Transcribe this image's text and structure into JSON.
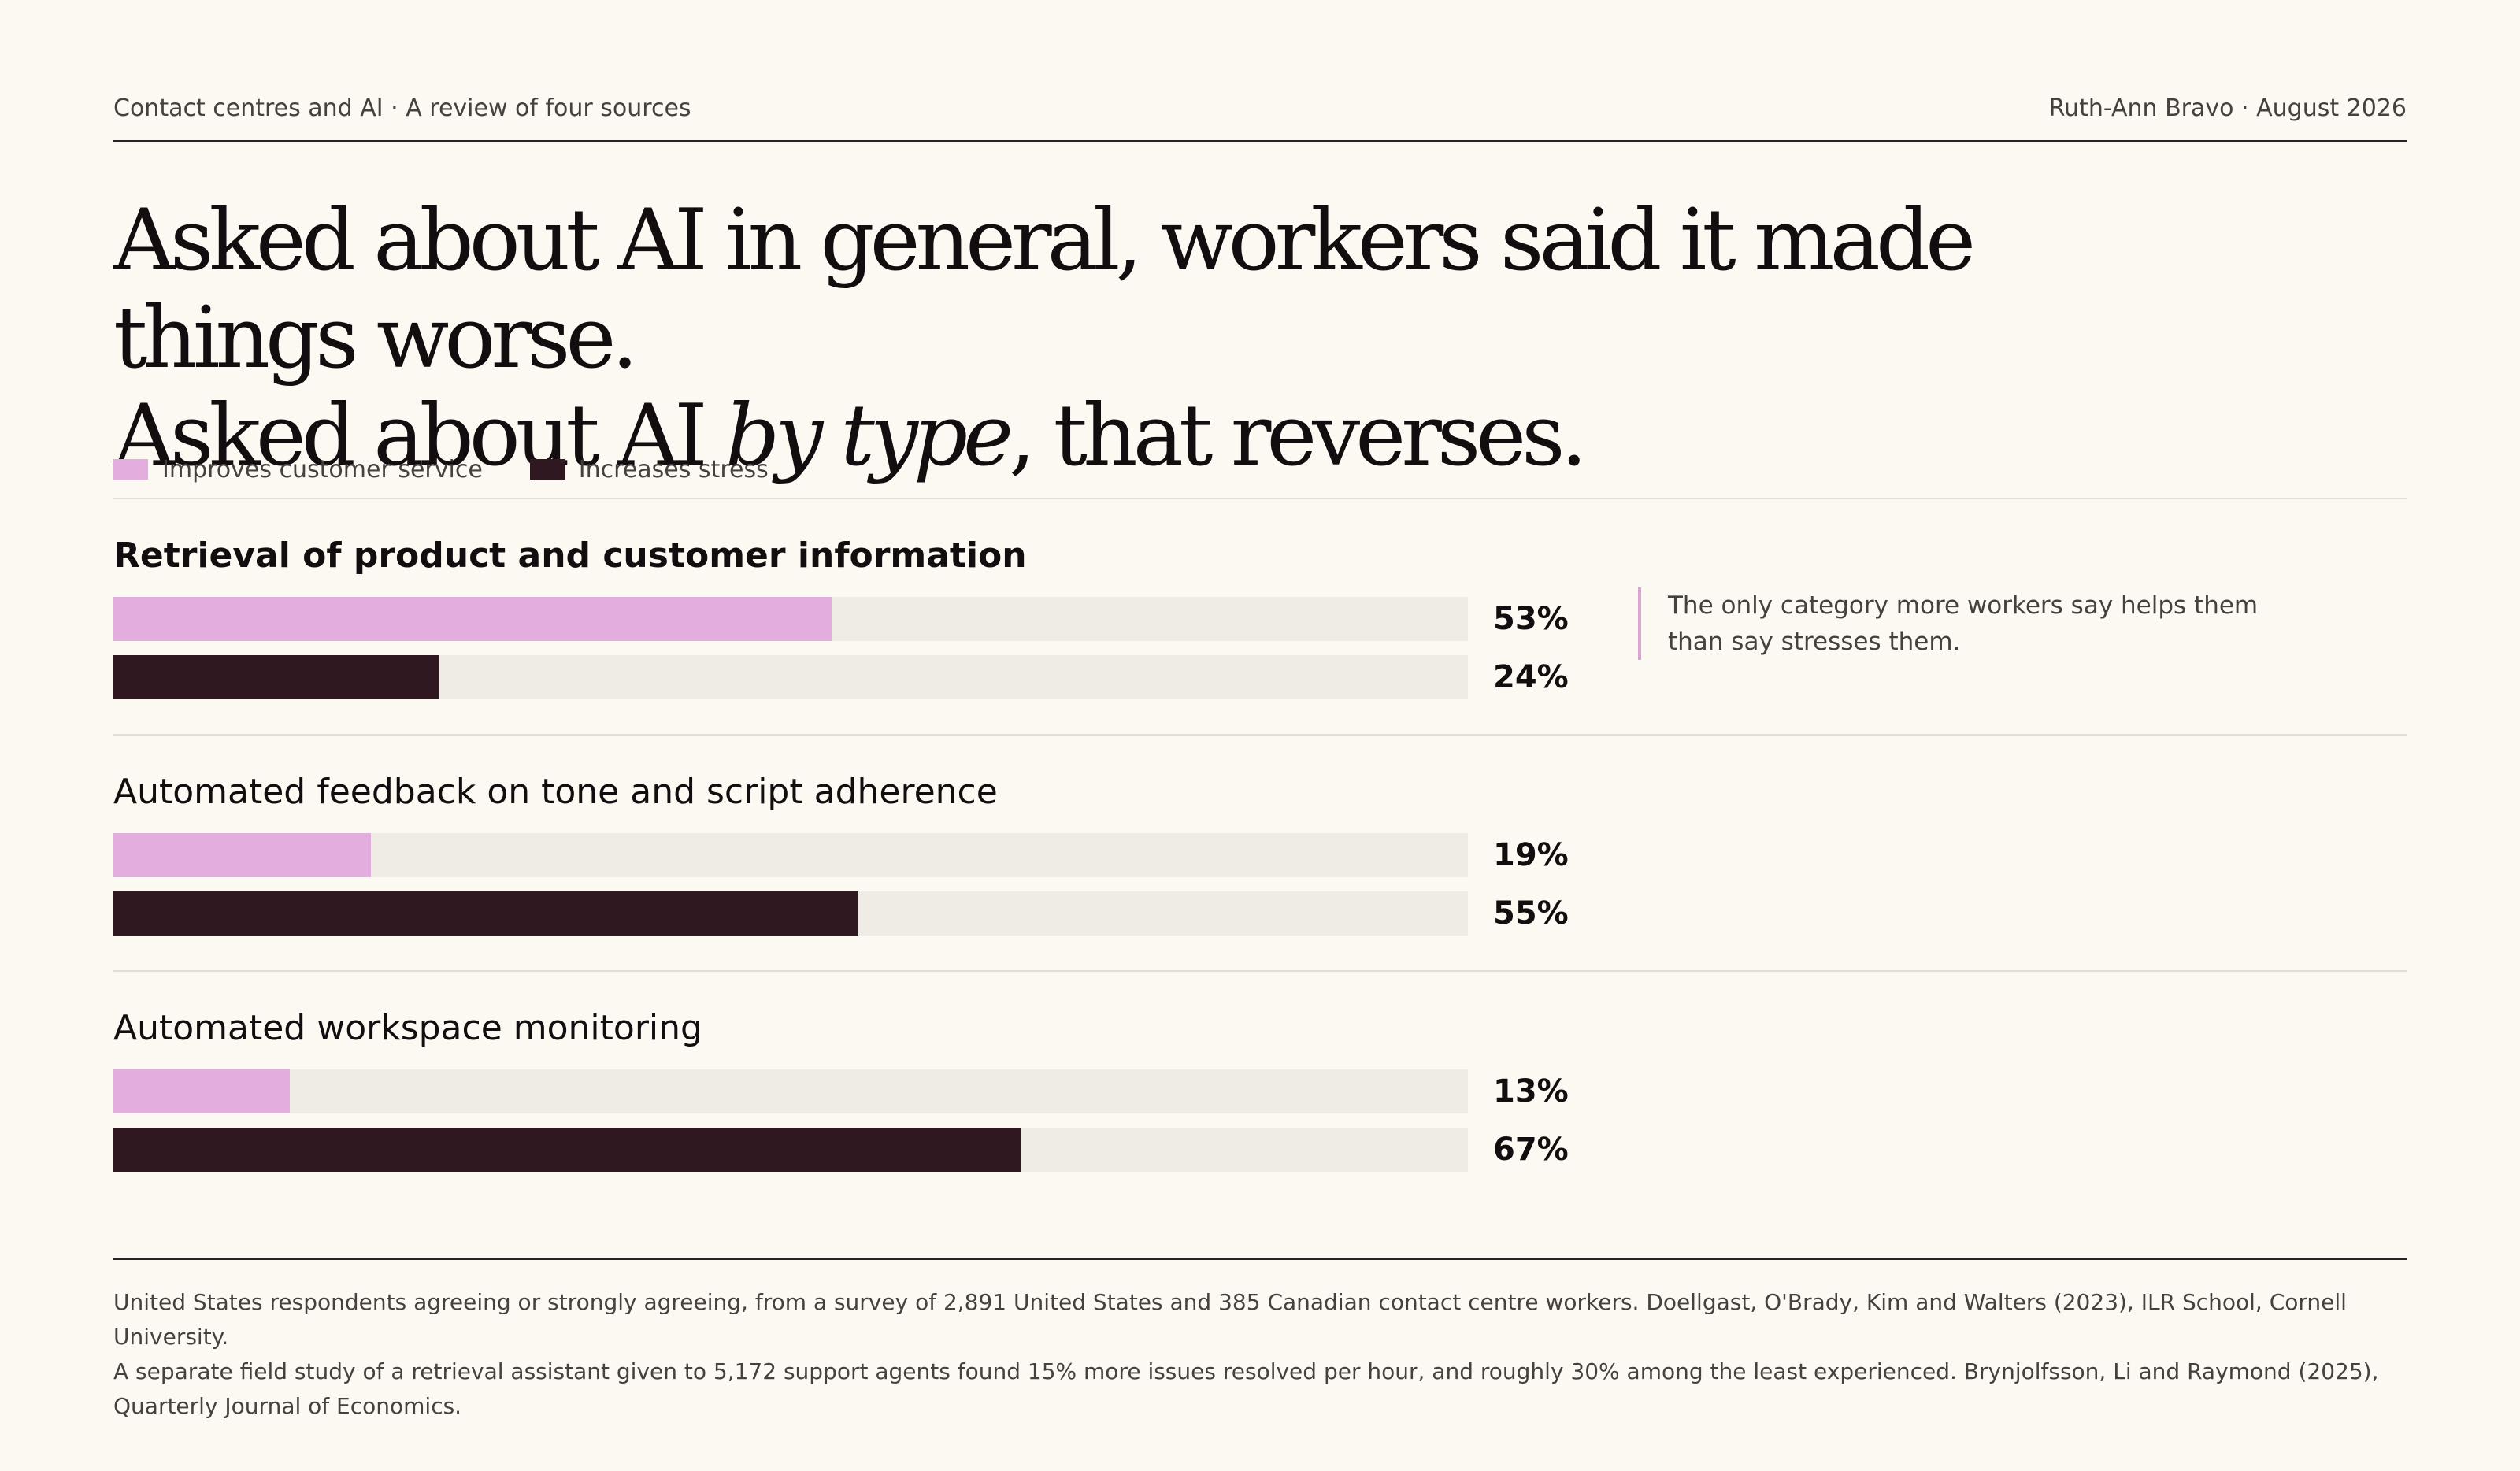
{
  "header": {
    "left": "Contact centres and AI · A review of four sources",
    "right": "Ruth-Ann Bravo · August 2026"
  },
  "headline": {
    "line1": "Asked about AI in general, workers said it made things worse.",
    "line2_pre": "Asked about AI ",
    "line2_em": "by type",
    "line2_post": ", that reverses."
  },
  "colors": {
    "improves": "#e3aede",
    "stress": "#2f181f",
    "track": "#efebe5",
    "note_rule": "#d8a6cf"
  },
  "chart_data": {
    "type": "bar",
    "orientation": "horizontal",
    "xlim": [
      0,
      100
    ],
    "unit": "%",
    "legend": [
      "Improves customer service",
      "Increases stress"
    ],
    "legend_position": "top-left",
    "categories": [
      "Retrieval of product and customer information",
      "Automated feedback on tone and script adherence",
      "Automated workspace monitoring"
    ],
    "series": [
      {
        "name": "Improves customer service",
        "values": [
          53,
          19,
          13
        ],
        "labels": [
          "53%",
          "19%",
          "13%"
        ]
      },
      {
        "name": "Increases stress",
        "values": [
          24,
          55,
          67
        ],
        "labels": [
          "24%",
          "55%",
          "67%"
        ]
      }
    ],
    "annotation": "The only category more workers say helps them than say stresses them."
  },
  "footer": {
    "line1": "United States respondents agreeing or strongly agreeing, from a survey of 2,891 United States and 385 Canadian contact centre workers. Doellgast, O'Brady, Kim and Walters (2023), ILR School, Cornell University.",
    "line2": "A separate field study of a retrieval assistant given to 5,172 support agents found 15% more issues resolved per hour, and roughly 30% among the least experienced. Brynjolfsson, Li and Raymond (2025), Quarterly Journal of Economics."
  }
}
